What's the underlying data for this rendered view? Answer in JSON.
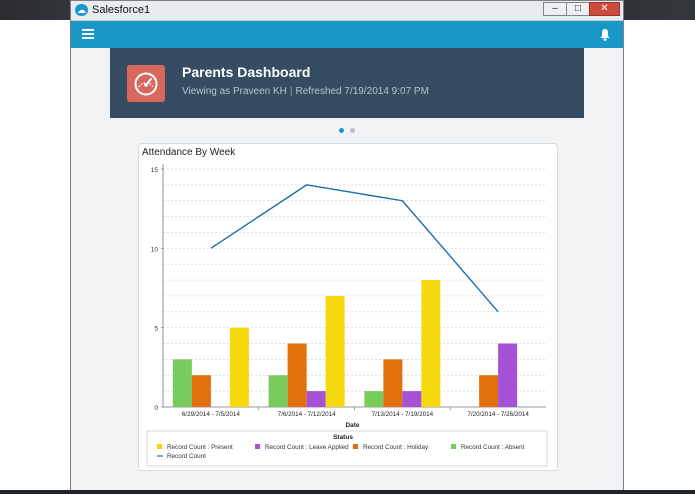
{
  "window": {
    "title": "Salesforce1",
    "app_icon_glyph": "☁",
    "controls": {
      "minimize": "–",
      "maximize": "□",
      "close": "✕"
    }
  },
  "appbar": {
    "menu_icon": "hamburger-menu-icon",
    "notification_icon": "bell-icon",
    "color": "#1997c6"
  },
  "banner": {
    "title": "Parents Dashboard",
    "viewing": "Viewing as Praveen KH",
    "separator": "|",
    "refreshed": "Refreshed 7/19/2014 9:07 PM",
    "icon": "speedometer-icon",
    "background": "#354c62",
    "icon_color": "#d8675d"
  },
  "pager": {
    "count": 2,
    "active": 0,
    "active_color": "#1a97d5",
    "inactive_color": "#b8bec4"
  },
  "card": {
    "title": "Attendance By Week"
  },
  "chart_data": {
    "type": "bar",
    "title": "Attendance By Week",
    "xlabel": "Date",
    "ylabel": "",
    "ylim": [
      0,
      15
    ],
    "yticks": [
      0,
      5,
      10,
      15
    ],
    "grid": true,
    "categories": [
      "6/29/2014 - 7/5/2014",
      "7/6/2014 - 7/12/2014",
      "7/13/2014 - 7/19/2014",
      "7/20/2014 - 7/26/2014"
    ],
    "series": [
      {
        "name": "Record Count : Absent",
        "color": "#78cc5d",
        "values": [
          3,
          2,
          1,
          0
        ]
      },
      {
        "name": "Record Count : Holiday",
        "color": "#e36f0c",
        "values": [
          2,
          4,
          3,
          2
        ]
      },
      {
        "name": "Record Count : Leave Applied",
        "color": "#a552d8",
        "values": [
          0,
          1,
          1,
          4
        ]
      },
      {
        "name": "Record Count : Present",
        "color": "#f5d90d",
        "values": [
          5,
          7,
          8,
          0
        ]
      }
    ],
    "line": {
      "name": "Record Count",
      "color": "#1f6ea9",
      "values": [
        10,
        14,
        13,
        6
      ]
    },
    "legend": {
      "title": "Status",
      "placement": "bottom",
      "order": [
        "Record Count : Present",
        "Record Count : Leave Applied",
        "Record Count : Holiday",
        "Record Count : Absent",
        "Record Count"
      ]
    }
  }
}
